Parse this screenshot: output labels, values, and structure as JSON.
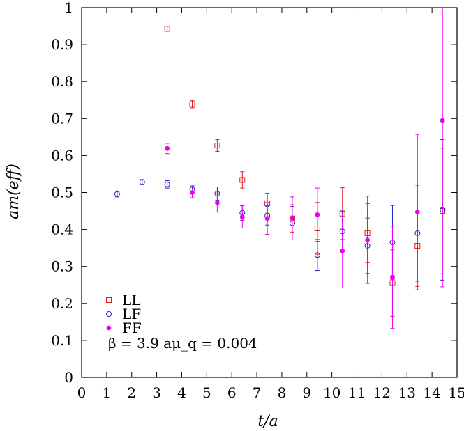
{
  "chart_data": {
    "type": "scatter",
    "title": "",
    "xlabel": "t/a",
    "ylabel": "am(eff)",
    "xlim": [
      0,
      15
    ],
    "ylim": [
      0,
      1
    ],
    "xticks": [
      0,
      1,
      2,
      3,
      4,
      5,
      6,
      7,
      8,
      9,
      10,
      11,
      12,
      13,
      14,
      15
    ],
    "yticks": [
      0,
      0.1,
      0.2,
      0.3,
      0.4,
      0.5,
      0.6,
      0.7,
      0.8,
      0.9,
      1
    ],
    "ytick_labels": [
      "0",
      "0.1",
      "0.2",
      "0.3",
      "0.4",
      "0.5",
      "0.6",
      "0.7",
      "0.8",
      "0.9",
      "1"
    ],
    "annotation": "β = 3.9  aμ_q = 0.004",
    "legend_position": "bottom-left",
    "series": [
      {
        "name": "LL",
        "marker": "square-open",
        "color": "#e41a1c",
        "points": [
          {
            "x": 3.42,
            "y": 0.943,
            "err": 0.007
          },
          {
            "x": 4.42,
            "y": 0.739,
            "err": 0.01
          },
          {
            "x": 5.42,
            "y": 0.627,
            "err": 0.016
          },
          {
            "x": 6.42,
            "y": 0.534,
            "err": 0.022
          },
          {
            "x": 7.42,
            "y": 0.471,
            "err": 0.027
          },
          {
            "x": 8.42,
            "y": 0.43,
            "err": 0.037
          },
          {
            "x": 9.42,
            "y": 0.403,
            "err": 0.07
          },
          {
            "x": 10.42,
            "y": 0.443,
            "err": 0.07
          },
          {
            "x": 11.42,
            "y": 0.39,
            "err": 0.08
          },
          {
            "x": 12.42,
            "y": 0.255,
            "err": 0.09
          },
          {
            "x": 13.42,
            "y": 0.356,
            "err": 0.11
          },
          {
            "x": 14.42,
            "y": 0.45,
            "err": 0.17
          }
        ]
      },
      {
        "name": "LF",
        "marker": "circle-open",
        "color": "#2222cc",
        "points": [
          {
            "x": 1.42,
            "y": 0.496,
            "err": 0.008
          },
          {
            "x": 2.42,
            "y": 0.528,
            "err": 0.007
          },
          {
            "x": 3.42,
            "y": 0.522,
            "err": 0.01
          },
          {
            "x": 4.42,
            "y": 0.508,
            "err": 0.01
          },
          {
            "x": 5.42,
            "y": 0.497,
            "err": 0.018
          },
          {
            "x": 6.42,
            "y": 0.445,
            "err": 0.02
          },
          {
            "x": 7.42,
            "y": 0.437,
            "err": 0.025
          },
          {
            "x": 8.42,
            "y": 0.417,
            "err": 0.045
          },
          {
            "x": 9.42,
            "y": 0.331,
            "err": 0.042
          },
          {
            "x": 10.42,
            "y": 0.395,
            "err": 0.055
          },
          {
            "x": 11.42,
            "y": 0.356,
            "err": 0.075
          },
          {
            "x": 12.42,
            "y": 0.365,
            "err": 0.1
          },
          {
            "x": 13.42,
            "y": 0.39,
            "err": 0.13
          },
          {
            "x": 14.42,
            "y": 0.453,
            "err": 0.19
          }
        ]
      },
      {
        "name": "FF",
        "marker": "circle-filled",
        "color": "#ee00ee",
        "points": [
          {
            "x": 3.42,
            "y": 0.619,
            "err": 0.014
          },
          {
            "x": 4.42,
            "y": 0.5,
            "err": 0.014
          },
          {
            "x": 5.42,
            "y": 0.472,
            "err": 0.025
          },
          {
            "x": 6.42,
            "y": 0.434,
            "err": 0.03
          },
          {
            "x": 7.42,
            "y": 0.43,
            "err": 0.043
          },
          {
            "x": 8.42,
            "y": 0.43,
            "err": 0.058
          },
          {
            "x": 9.42,
            "y": 0.44,
            "err": 0.072
          },
          {
            "x": 10.42,
            "y": 0.342,
            "err": 0.1
          },
          {
            "x": 11.42,
            "y": 0.372,
            "err": 0.118
          },
          {
            "x": 12.42,
            "y": 0.271,
            "err": 0.138
          },
          {
            "x": 13.42,
            "y": 0.447,
            "err": 0.21
          },
          {
            "x": 14.42,
            "y": 0.695,
            "err": 0.45
          }
        ]
      }
    ]
  }
}
